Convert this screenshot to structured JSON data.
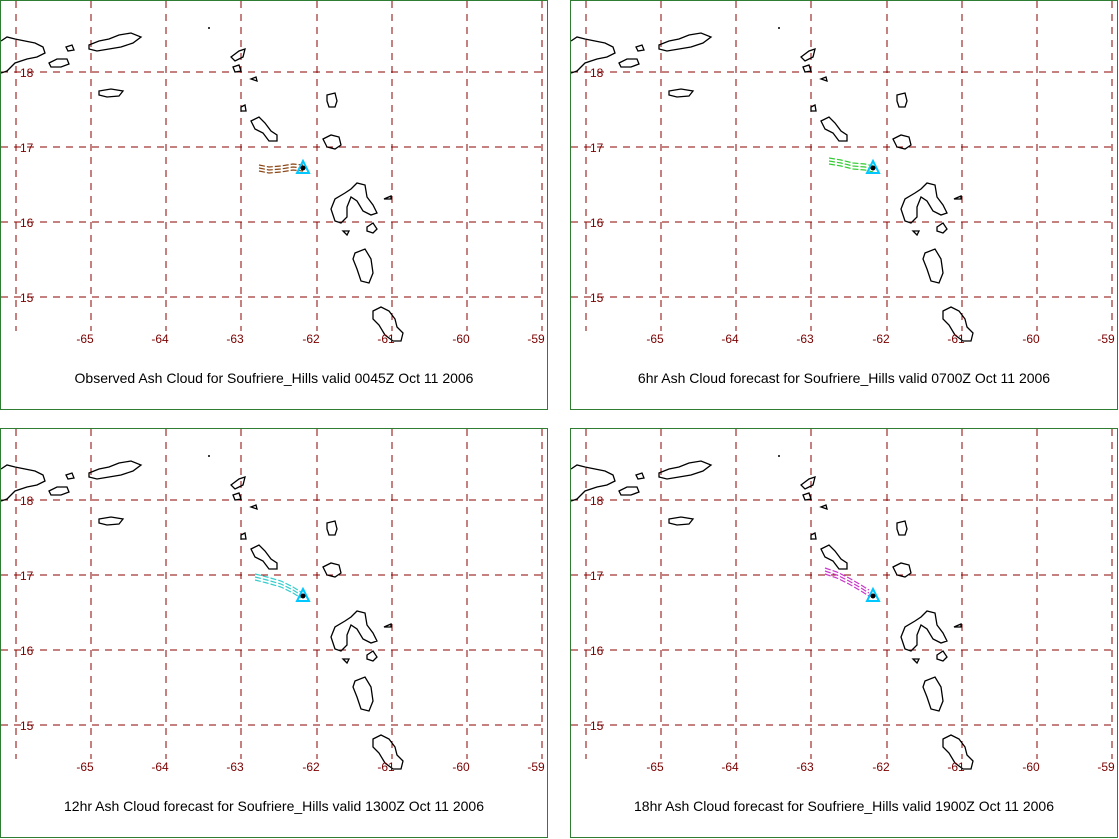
{
  "map": {
    "lat_labels": [
      "18",
      "17",
      "16",
      "15"
    ],
    "lon_labels": [
      "-65",
      "-64",
      "-63",
      "-62",
      "-61",
      "-60",
      "-59"
    ],
    "grid_color": "#8b0000",
    "label_color": "#7a0000",
    "coast_color": "#000000",
    "volcano_color": "#00c8ff"
  },
  "panels": [
    {
      "caption": "Observed Ash Cloud for Soufriere_Hills valid 0045Z Oct 11 2006",
      "ash_color": "#8b4513"
    },
    {
      "caption": "6hr Ash Cloud forecast for Soufriere_Hills valid 0700Z Oct 11 2006",
      "ash_color": "#33cc33"
    },
    {
      "caption": "12hr Ash Cloud forecast for Soufriere_Hills valid 1300Z Oct 11 2006",
      "ash_color": "#33cccc"
    },
    {
      "caption": "18hr Ash Cloud forecast for Soufriere_Hills valid 1900Z Oct 11 2006",
      "ash_color": "#cc33cc"
    }
  ]
}
